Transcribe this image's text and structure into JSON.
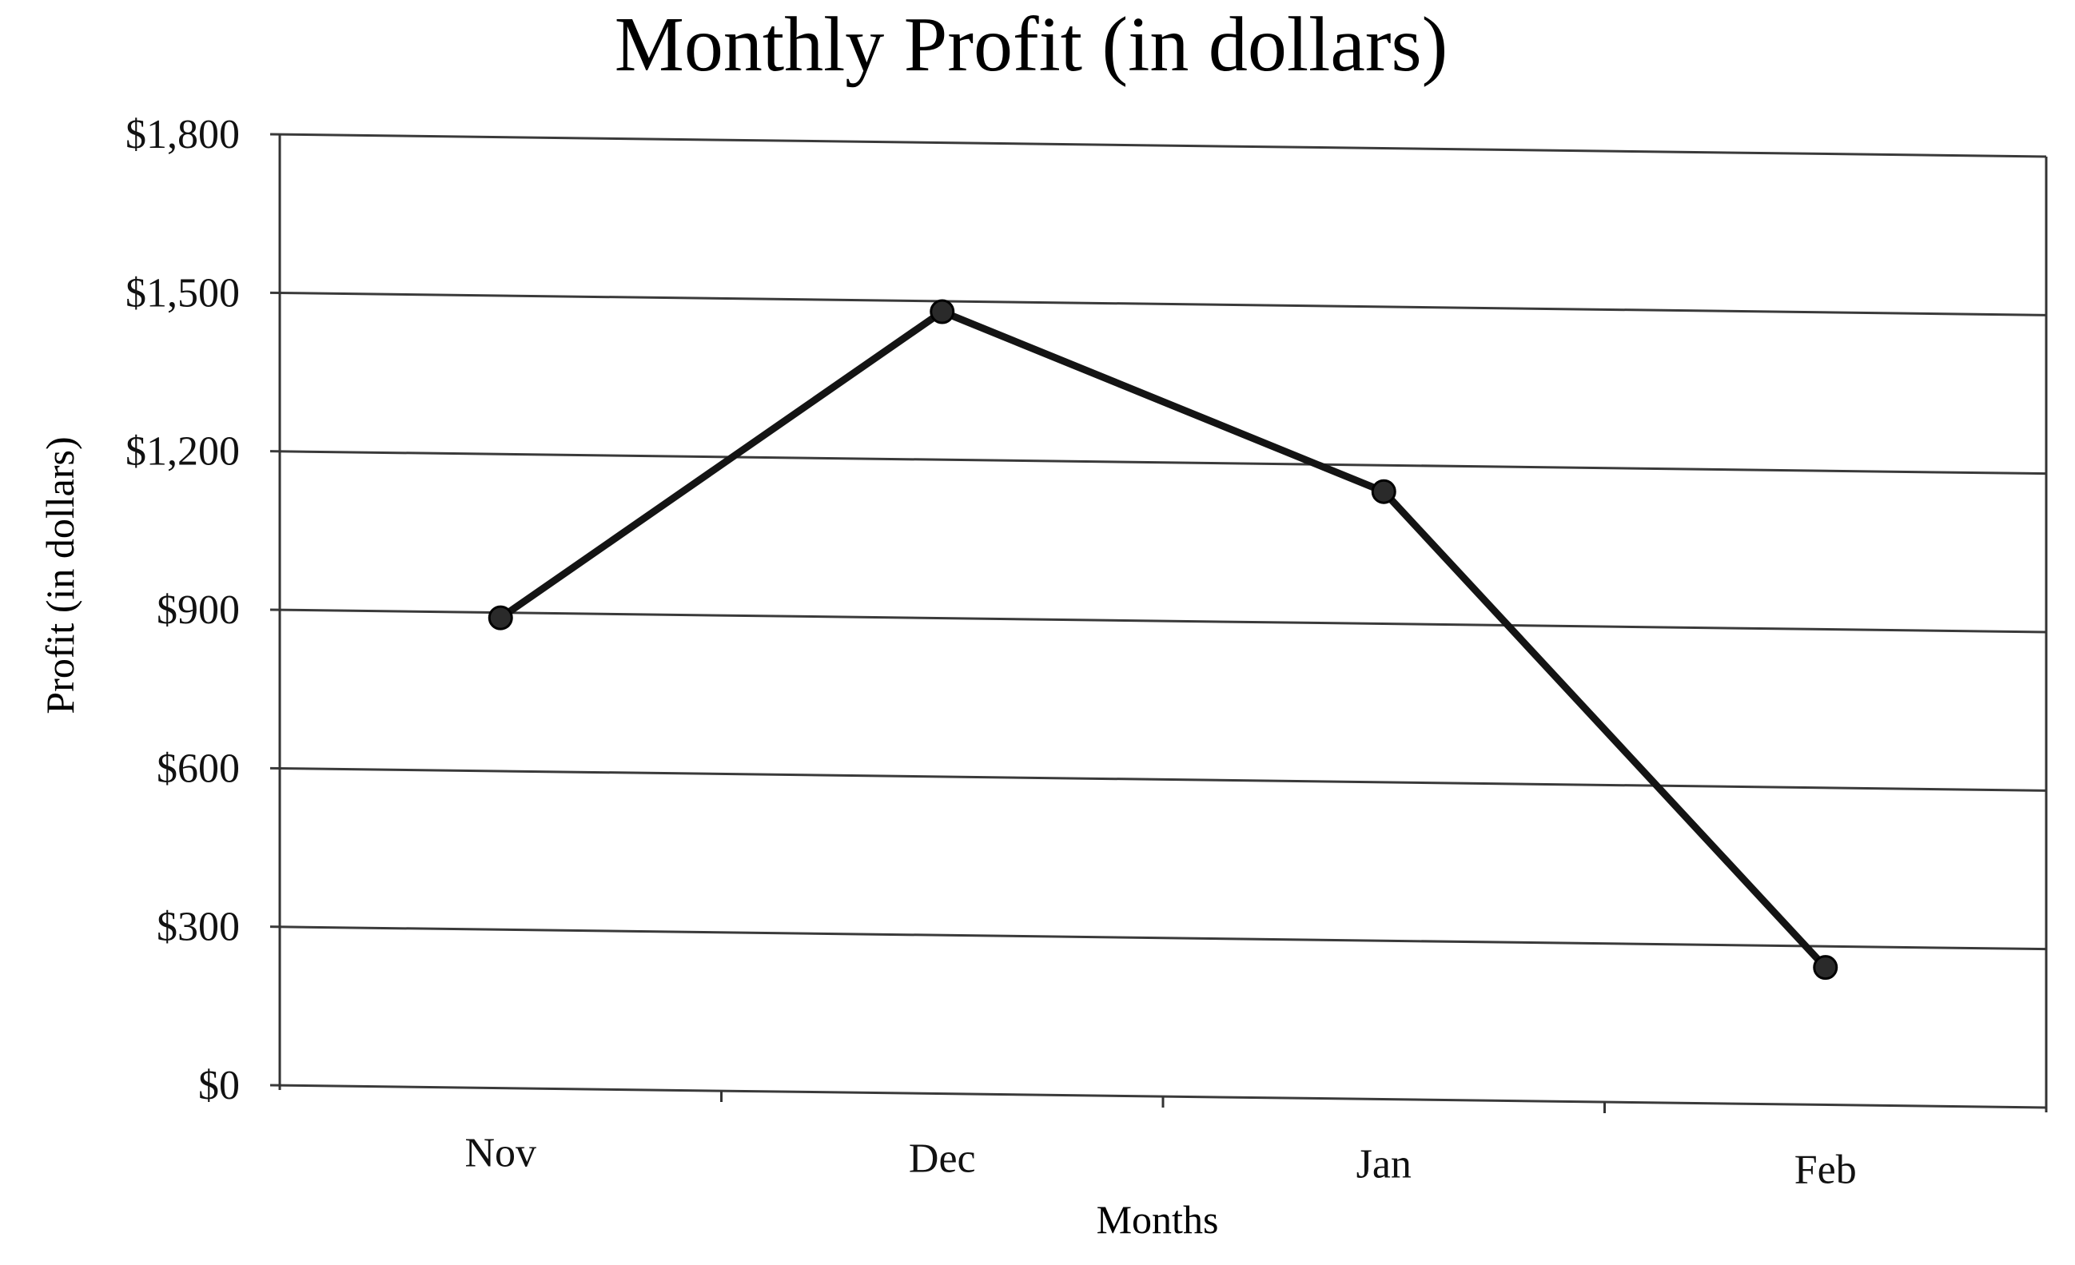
{
  "chart_data": {
    "type": "line",
    "title": "Monthly Profit (in dollars)",
    "xlabel": "Months",
    "ylabel": "Profit (in dollars)",
    "categories": [
      "Nov",
      "Dec",
      "Jan",
      "Feb"
    ],
    "series": [
      {
        "values": [
          890,
          1480,
          1150,
          260
        ]
      }
    ],
    "ylim": [
      0,
      1800
    ],
    "y_ticks": [
      0,
      300,
      600,
      900,
      1200,
      1500,
      1800
    ],
    "y_tick_labels": [
      "$0",
      "$300",
      "$600",
      "$900",
      "$1,200",
      "$1,500",
      "$1,800"
    ],
    "grid": true,
    "legend": "none",
    "colors": {
      "line": "#141414",
      "marker": "#2a2a2a",
      "grid": "#3a3a3a",
      "text": "#111111",
      "background": "#ffffff"
    }
  }
}
